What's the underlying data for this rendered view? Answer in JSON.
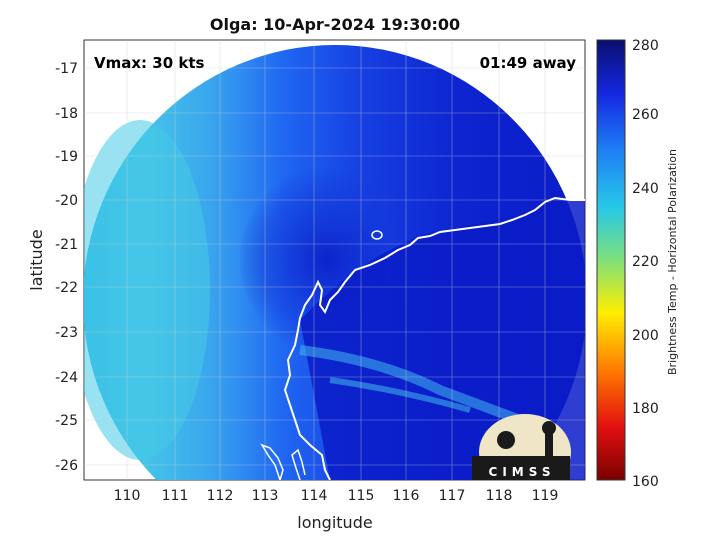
{
  "title": "Olga: 10-Apr-2024 19:30:00",
  "vmax_label": "Vmax: 30 kts",
  "away_label": "01:49 away",
  "xlabel": "longitude",
  "ylabel": "latitude",
  "x_ticks": [
    "110",
    "111",
    "112",
    "113",
    "114",
    "115",
    "116",
    "117",
    "118",
    "119"
  ],
  "y_ticks": [
    "-17",
    "-18",
    "-19",
    "-20",
    "-21",
    "-22",
    "-23",
    "-24",
    "-25",
    "-26"
  ],
  "colorbar": {
    "label": "Brightness Temp - Horizontal Polarization",
    "ticks": [
      "280",
      "260",
      "240",
      "220",
      "200",
      "180",
      "160"
    ],
    "min": 160,
    "max": 280
  },
  "logo_text": "CIMSS",
  "colors": {
    "deep_blue": "#0a1fcc",
    "blue": "#1a55f0",
    "cyan": "#3ec6e6",
    "coast": "#ffffff"
  }
}
